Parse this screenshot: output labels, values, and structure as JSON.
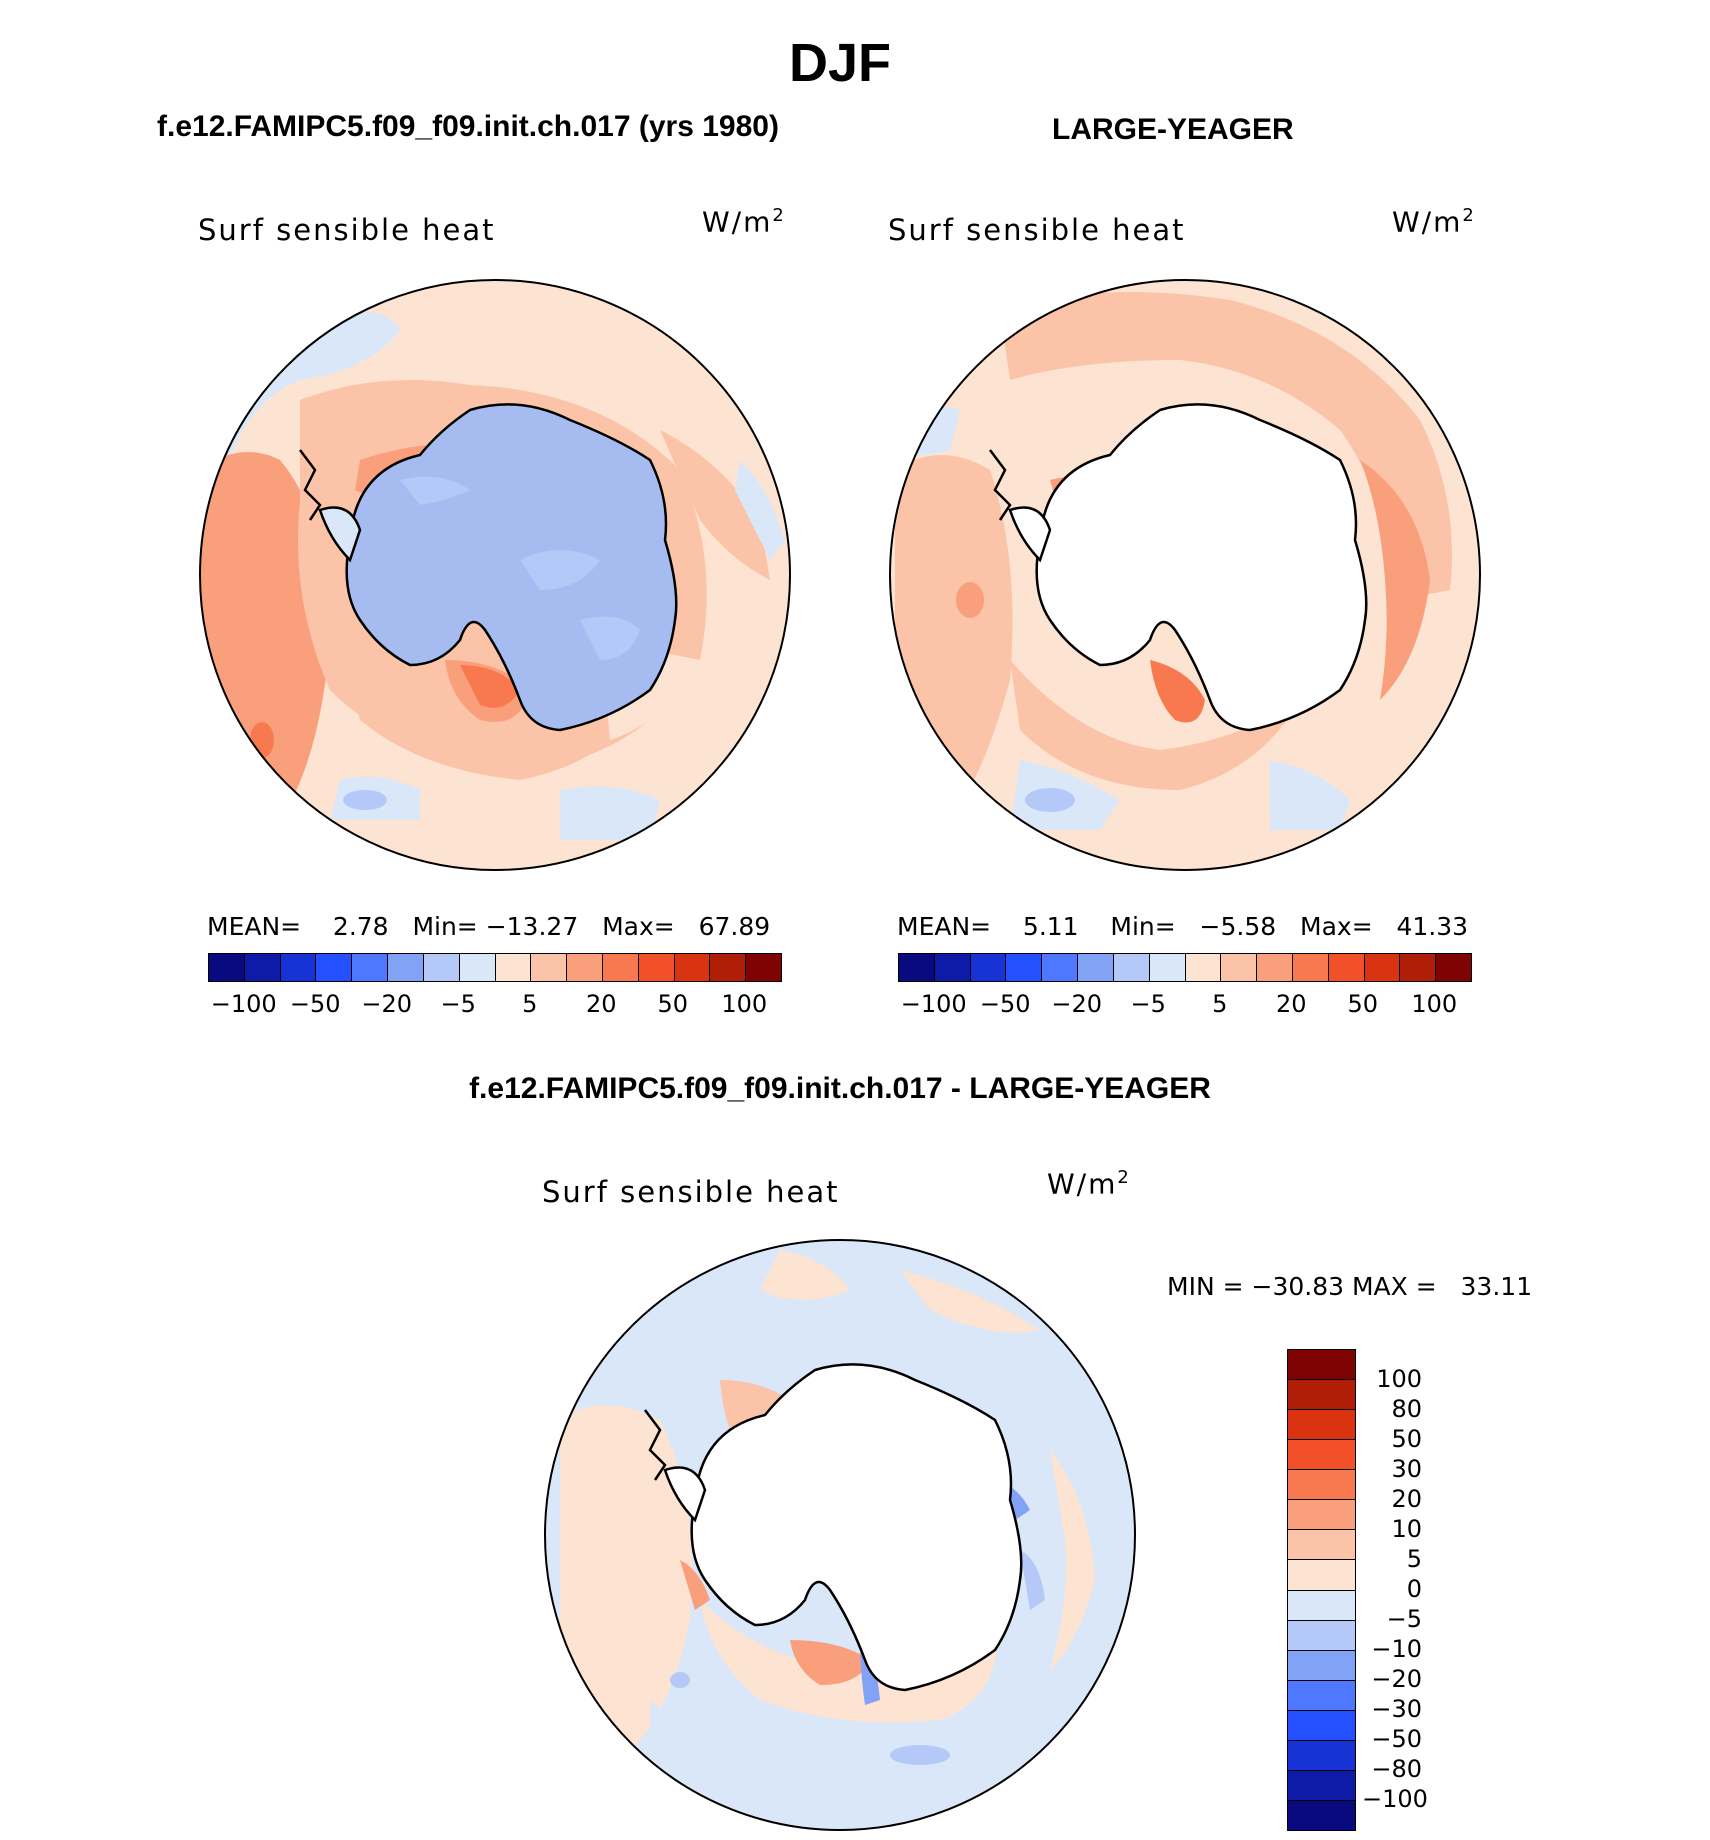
{
  "page_title": "DJF",
  "colors": {
    "levels": [
      "#0a0a80",
      "#0d1ba8",
      "#1733d6",
      "#2450ff",
      "#4d78ff",
      "#82a2f5",
      "#b4c9f7",
      "#d9e7f8",
      "#fde3d1",
      "#fbc4a8",
      "#fa9f7c",
      "#f8794f",
      "#f25028",
      "#d93311",
      "#b01e08",
      "#800303"
    ],
    "land": "#ffffff",
    "ice_sheet": "#a6bbf0",
    "coast": "#000000"
  },
  "chart_data": [
    {
      "type": "polar-contour-map",
      "title": "f.e12.FAMIPC5.f09_f09.init.ch.017 (yrs 1980)",
      "variable": "Surf sensible heat",
      "units": "W/m",
      "units_exp": "2",
      "stats": {
        "mean_label": "MEAN=",
        "mean": "2.78",
        "min_label": "Min=",
        "min": "−13.27",
        "max_label": "Max=",
        "max": "67.89"
      },
      "colorbar_ticks": [
        "−100",
        "−50",
        "−20",
        "−5",
        "5",
        "20",
        "50",
        "100"
      ],
      "levels": [
        -100,
        -80,
        -50,
        -30,
        -20,
        -10,
        -5,
        0,
        5,
        10,
        20,
        30,
        50,
        80,
        100
      ]
    },
    {
      "type": "polar-contour-map",
      "title": "LARGE-YEAGER",
      "variable": "Surf sensible heat",
      "units": "W/m",
      "units_exp": "2",
      "stats": {
        "mean_label": "MEAN=",
        "mean": "5.11",
        "min_label": "Min=",
        "min": "−5.58",
        "max_label": "Max=",
        "max": "41.33"
      },
      "colorbar_ticks": [
        "−100",
        "−50",
        "−20",
        "−5",
        "5",
        "20",
        "50",
        "100"
      ],
      "levels": [
        -100,
        -80,
        -50,
        -30,
        -20,
        -10,
        -5,
        0,
        5,
        10,
        20,
        30,
        50,
        80,
        100
      ]
    },
    {
      "type": "polar-contour-map",
      "title": "f.e12.FAMIPC5.f09_f09.init.ch.017 - LARGE-YEAGER",
      "variable": "Surf sensible heat",
      "units": "W/m",
      "units_exp": "2",
      "stats": {
        "min_label": "MIN =",
        "min": "−30.83",
        "max_label": "MAX =",
        "max": "33.11"
      },
      "colorbar_ticks": [
        "100",
        "80",
        "50",
        "30",
        "20",
        "10",
        "5",
        "0",
        "−5",
        "−10",
        "−20",
        "−30",
        "−50",
        "−80",
        "−100"
      ],
      "levels": [
        -100,
        -80,
        -50,
        -30,
        -20,
        -10,
        -5,
        0,
        5,
        10,
        20,
        30,
        50,
        80,
        100
      ]
    }
  ]
}
